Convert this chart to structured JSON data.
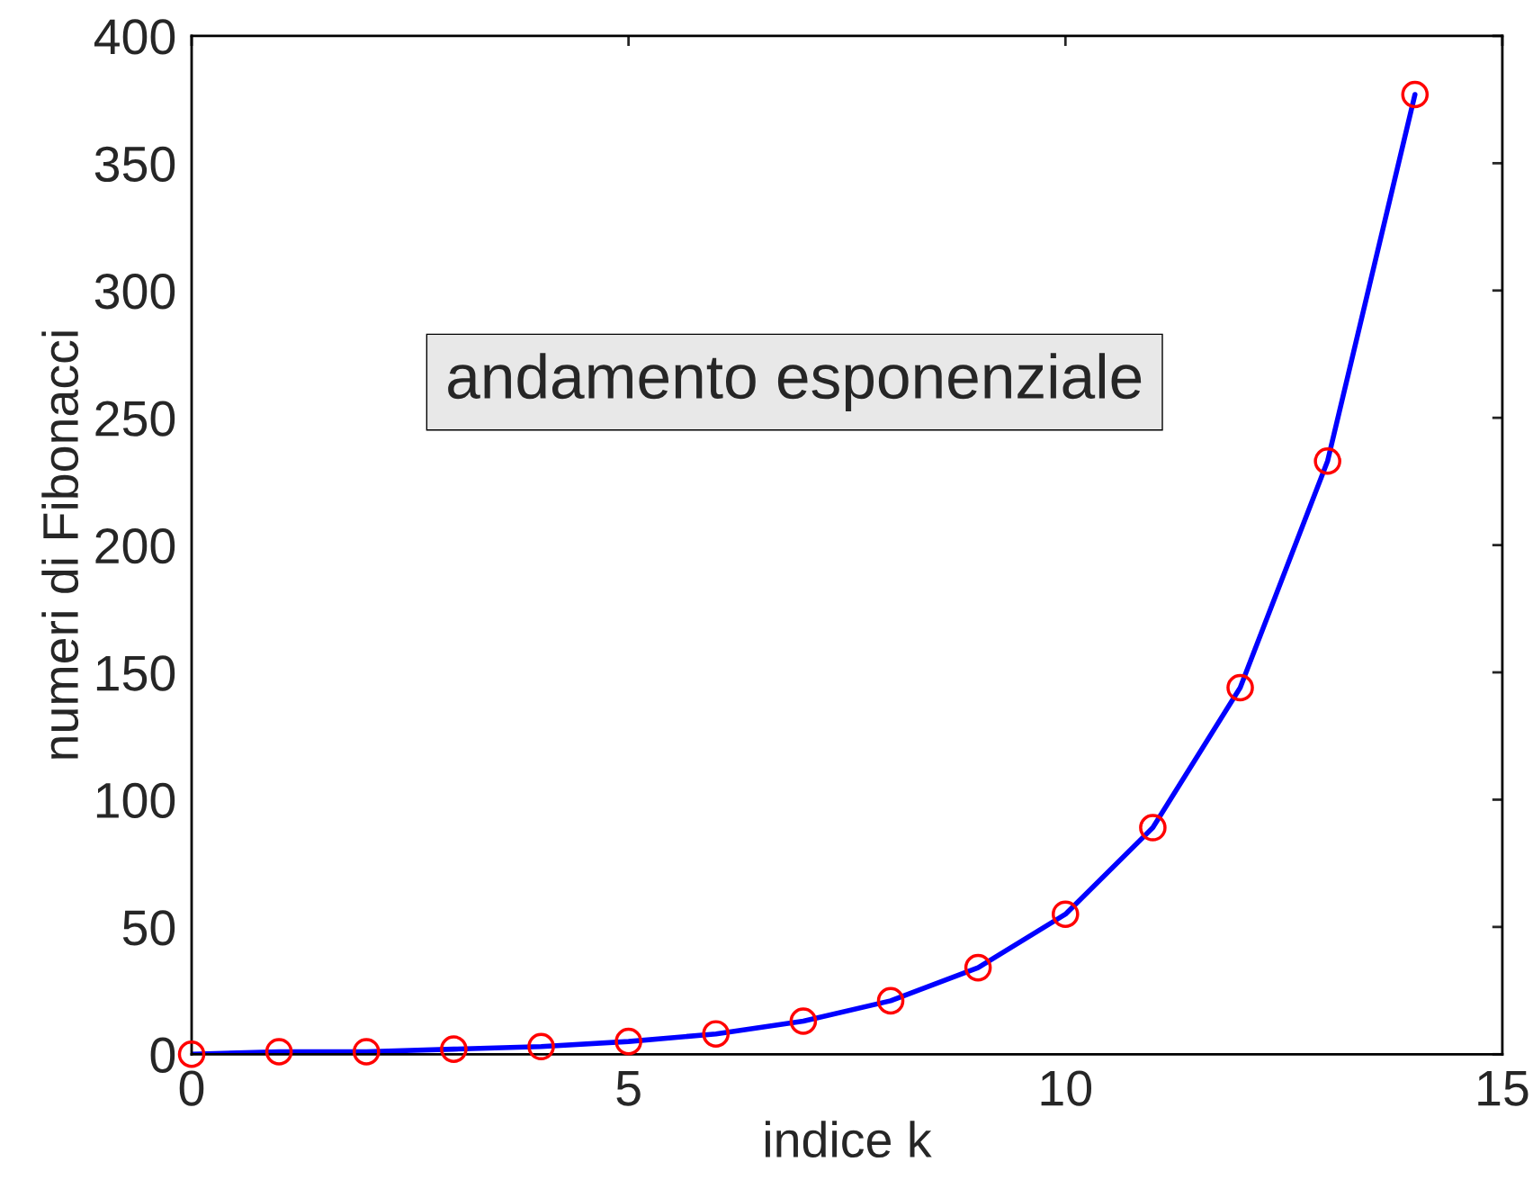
{
  "chart_data": {
    "type": "line",
    "xlabel": "indice k",
    "ylabel": "numeri di Fibonacci",
    "annotations": [
      "andamento esponenziale"
    ],
    "series": [
      {
        "color": "#0000ff",
        "colors": [
          "#ff0000",
          "#ff0000",
          "#ff0000",
          "#ff0000",
          "#ff0000",
          "#ff0000",
          "#ff0000",
          "#ff0000",
          "#ff0000",
          "#ff0000",
          "#ff0000",
          "#ff0000",
          "#ff0000",
          "#ff0000",
          "#ff0000"
        ],
        "marker": "circle",
        "x": [
          0,
          1,
          2,
          3,
          4,
          5,
          6,
          7,
          8,
          9,
          10,
          11,
          12,
          13,
          14
        ],
        "values": [
          0,
          1,
          1,
          2,
          3,
          5,
          8,
          13,
          21,
          34,
          55,
          89,
          144,
          233,
          377
        ]
      }
    ],
    "xlim": [
      0,
      15
    ],
    "xticks": [
      0,
      5,
      10,
      15
    ],
    "ylim": [
      0,
      400
    ],
    "yticks": [
      0,
      50,
      100,
      150,
      200,
      250,
      300,
      350,
      400
    ],
    "grid": false,
    "legend": false
  }
}
